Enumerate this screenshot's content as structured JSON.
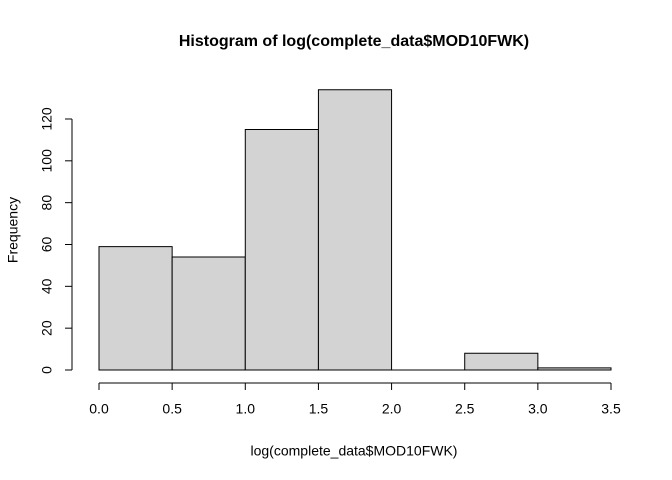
{
  "chart_data": {
    "type": "histogram",
    "title": "Histogram of log(complete_data$MOD10FWK)",
    "xlabel": "log(complete_data$MOD10FWK)",
    "ylabel": "Frequency",
    "bins": [
      0,
      0.5,
      1,
      1.5,
      2,
      2.5,
      3,
      3.5
    ],
    "values": [
      59,
      54,
      115,
      134,
      0,
      8,
      1
    ],
    "color": "#d3d3d3",
    "xlim": [
      0,
      3.5
    ],
    "ylim": [
      0,
      134
    ],
    "xticks": [
      {
        "value": 0,
        "label": "0.0"
      },
      0.5,
      {
        "value": 1,
        "label": "1.0"
      },
      1.5,
      {
        "value": 2,
        "label": "2.0"
      },
      2.5,
      {
        "value": 3,
        "label": "3.0"
      },
      3.5
    ],
    "yticks": [
      0,
      20,
      40,
      60,
      80,
      100,
      120
    ],
    "grid": false
  }
}
